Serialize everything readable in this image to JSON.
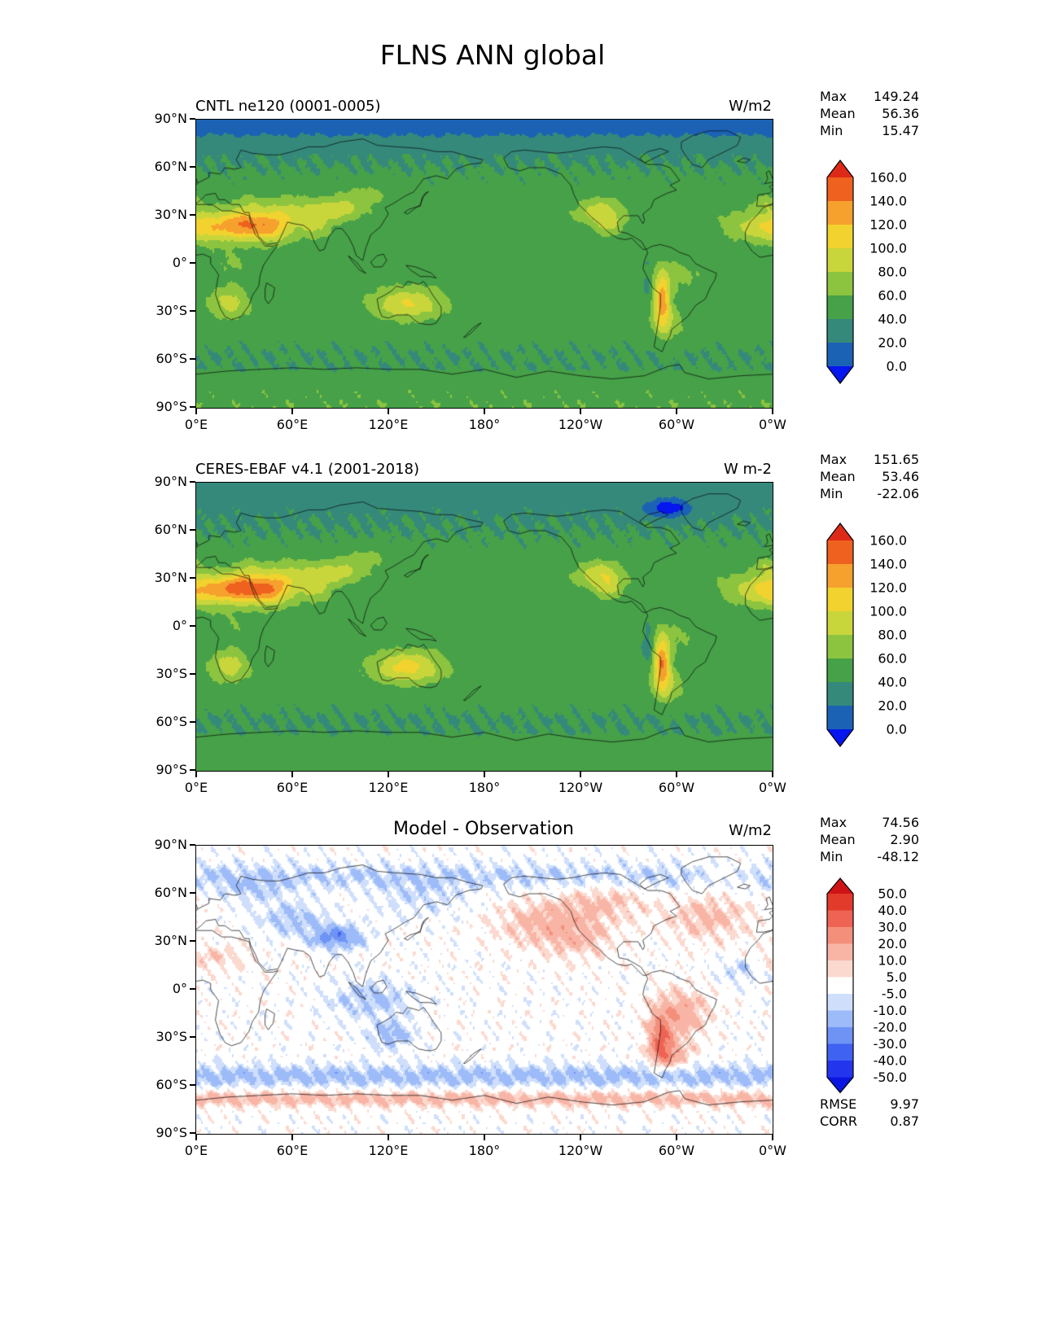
{
  "title": "FLNS ANN global",
  "axes": {
    "lat_ticks": [
      "90°N",
      "60°N",
      "30°N",
      "0°",
      "30°S",
      "60°S",
      "90°S"
    ],
    "lon_ticks": [
      "0°E",
      "60°E",
      "120°E",
      "180°",
      "120°W",
      "60°W",
      "0°W"
    ]
  },
  "panels": [
    {
      "title": "CNTL ne120 (0001-0005)",
      "units": "W/m2",
      "stats": [
        [
          "Max",
          "149.24"
        ],
        [
          "Mean",
          "56.36"
        ],
        [
          "Min",
          "15.47"
        ]
      ],
      "colorbar": {
        "tick_labels": [
          "160.0",
          "140.0",
          "120.0",
          "100.0",
          "80.0",
          "60.0",
          "40.0",
          "20.0",
          "0.0"
        ],
        "bounds": [
          0,
          20,
          40,
          60,
          80,
          100,
          120,
          140,
          160
        ],
        "colors_low_to_high": [
          "#0516ee",
          "#1b62b5",
          "#35897b",
          "#46a148",
          "#8cc440",
          "#c9d63b",
          "#f2d22e",
          "#f6a02e",
          "#ef611f",
          "#dd2a18"
        ]
      }
    },
    {
      "title": "CERES-EBAF v4.1 (2001-2018)",
      "units": "W m-2",
      "stats": [
        [
          "Max",
          "151.65"
        ],
        [
          "Mean",
          "53.46"
        ],
        [
          "Min",
          "-22.06"
        ]
      ],
      "colorbar": {
        "tick_labels": [
          "160.0",
          "140.0",
          "120.0",
          "100.0",
          "80.0",
          "60.0",
          "40.0",
          "20.0",
          "0.0"
        ],
        "bounds": [
          0,
          20,
          40,
          60,
          80,
          100,
          120,
          140,
          160
        ],
        "colors_low_to_high": [
          "#0516ee",
          "#1b62b5",
          "#35897b",
          "#46a148",
          "#8cc440",
          "#c9d63b",
          "#f2d22e",
          "#f6a02e",
          "#ef611f",
          "#dd2a18"
        ]
      }
    },
    {
      "title": "Model - Observation",
      "units": "W/m2",
      "stats": [
        [
          "Max",
          "74.56"
        ],
        [
          "Mean",
          "2.90"
        ],
        [
          "Min",
          "-48.12"
        ]
      ],
      "extra_stats": [
        [
          "RMSE",
          "9.97"
        ],
        [
          "CORR",
          "0.87"
        ]
      ],
      "colorbar": {
        "tick_labels": [
          "50.0",
          "40.0",
          "30.0",
          "20.0",
          "10.0",
          "5.0",
          "-5.0",
          "-10.0",
          "-20.0",
          "-30.0",
          "-40.0",
          "-50.0"
        ],
        "bounds": [
          -50,
          -40,
          -30,
          -20,
          -10,
          -5,
          5,
          10,
          20,
          30,
          40,
          50
        ],
        "colors_low_to_high": [
          "#0b16e0",
          "#2336ee",
          "#3f62f2",
          "#6e93f5",
          "#9dbbf8",
          "#cfdffb",
          "#ffffff",
          "#fbd9cf",
          "#f8b5a6",
          "#f48f7c",
          "#ee6353",
          "#e23a2b",
          "#cf1418"
        ]
      }
    }
  ],
  "chart_data": {
    "type": "heatmap",
    "subtype": "global-latlon-filled-contour-maps",
    "variable": "FLNS",
    "season": "ANN",
    "region": "global",
    "lat_range": [
      -90,
      90
    ],
    "lon_range": [
      0,
      360
    ],
    "lat_ticks_deg": [
      90,
      60,
      30,
      0,
      -30,
      -60,
      -90
    ],
    "lon_ticks_deg": [
      0,
      60,
      120,
      180,
      240,
      300,
      360
    ],
    "panels": [
      {
        "name": "CNTL ne120 (0001-0005)",
        "units": "W/m2",
        "max": 149.24,
        "mean": 56.36,
        "min": 15.47,
        "contour_levels": [
          0,
          20,
          40,
          60,
          80,
          100,
          120,
          140,
          160
        ]
      },
      {
        "name": "CERES-EBAF v4.1 (2001-2018)",
        "units": "W m-2",
        "max": 151.65,
        "mean": 53.46,
        "min": -22.06,
        "contour_levels": [
          0,
          20,
          40,
          60,
          80,
          100,
          120,
          140,
          160
        ]
      },
      {
        "name": "Model - Observation",
        "units": "W/m2",
        "max": 74.56,
        "mean": 2.9,
        "min": -48.12,
        "rmse": 9.97,
        "corr": 0.87,
        "contour_levels": [
          -50,
          -40,
          -30,
          -20,
          -10,
          -5,
          5,
          10,
          20,
          30,
          40,
          50
        ]
      }
    ]
  }
}
